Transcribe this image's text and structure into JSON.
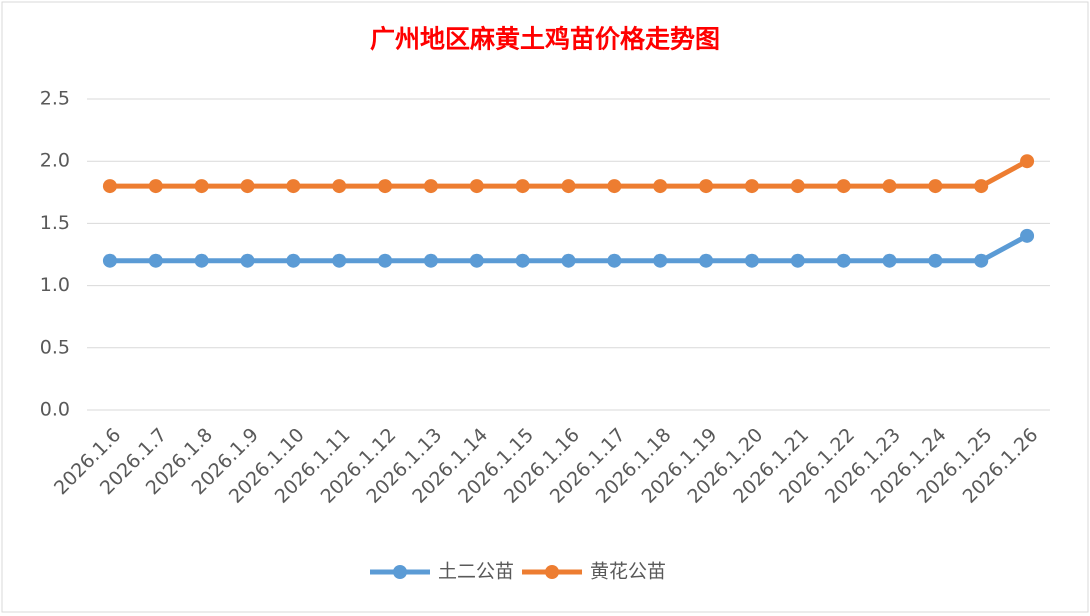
{
  "chart_data": {
    "type": "line",
    "title": "广州地区麻黄土鸡苗价格走势图",
    "categories": [
      "2026.1.6",
      "2026.1.7",
      "2026.1.8",
      "2026.1.9",
      "2026.1.10",
      "2026.1.11",
      "2026.1.12",
      "2026.1.13",
      "2026.1.14",
      "2026.1.15",
      "2026.1.16",
      "2026.1.17",
      "2026.1.18",
      "2026.1.19",
      "2026.1.20",
      "2026.1.21",
      "2026.1.22",
      "2026.1.23",
      "2026.1.24",
      "2026.1.25",
      "2026.1.26"
    ],
    "series": [
      {
        "name": "土二公苗",
        "color": "#5b9bd5",
        "values": [
          1.2,
          1.2,
          1.2,
          1.2,
          1.2,
          1.2,
          1.2,
          1.2,
          1.2,
          1.2,
          1.2,
          1.2,
          1.2,
          1.2,
          1.2,
          1.2,
          1.2,
          1.2,
          1.2,
          1.2,
          1.4
        ]
      },
      {
        "name": "黄花公苗",
        "color": "#ed7d31",
        "values": [
          1.8,
          1.8,
          1.8,
          1.8,
          1.8,
          1.8,
          1.8,
          1.8,
          1.8,
          1.8,
          1.8,
          1.8,
          1.8,
          1.8,
          1.8,
          1.8,
          1.8,
          1.8,
          1.8,
          1.8,
          2.0
        ]
      }
    ],
    "ylim": [
      0,
      2.5
    ],
    "yticks": [
      {
        "value": 0,
        "label": "0.0"
      },
      0.5,
      {
        "value": 1,
        "label": "1.0"
      },
      1.5,
      {
        "value": 2,
        "label": "2.0"
      },
      2.5
    ],
    "grid": true,
    "legend": "bottom"
  }
}
